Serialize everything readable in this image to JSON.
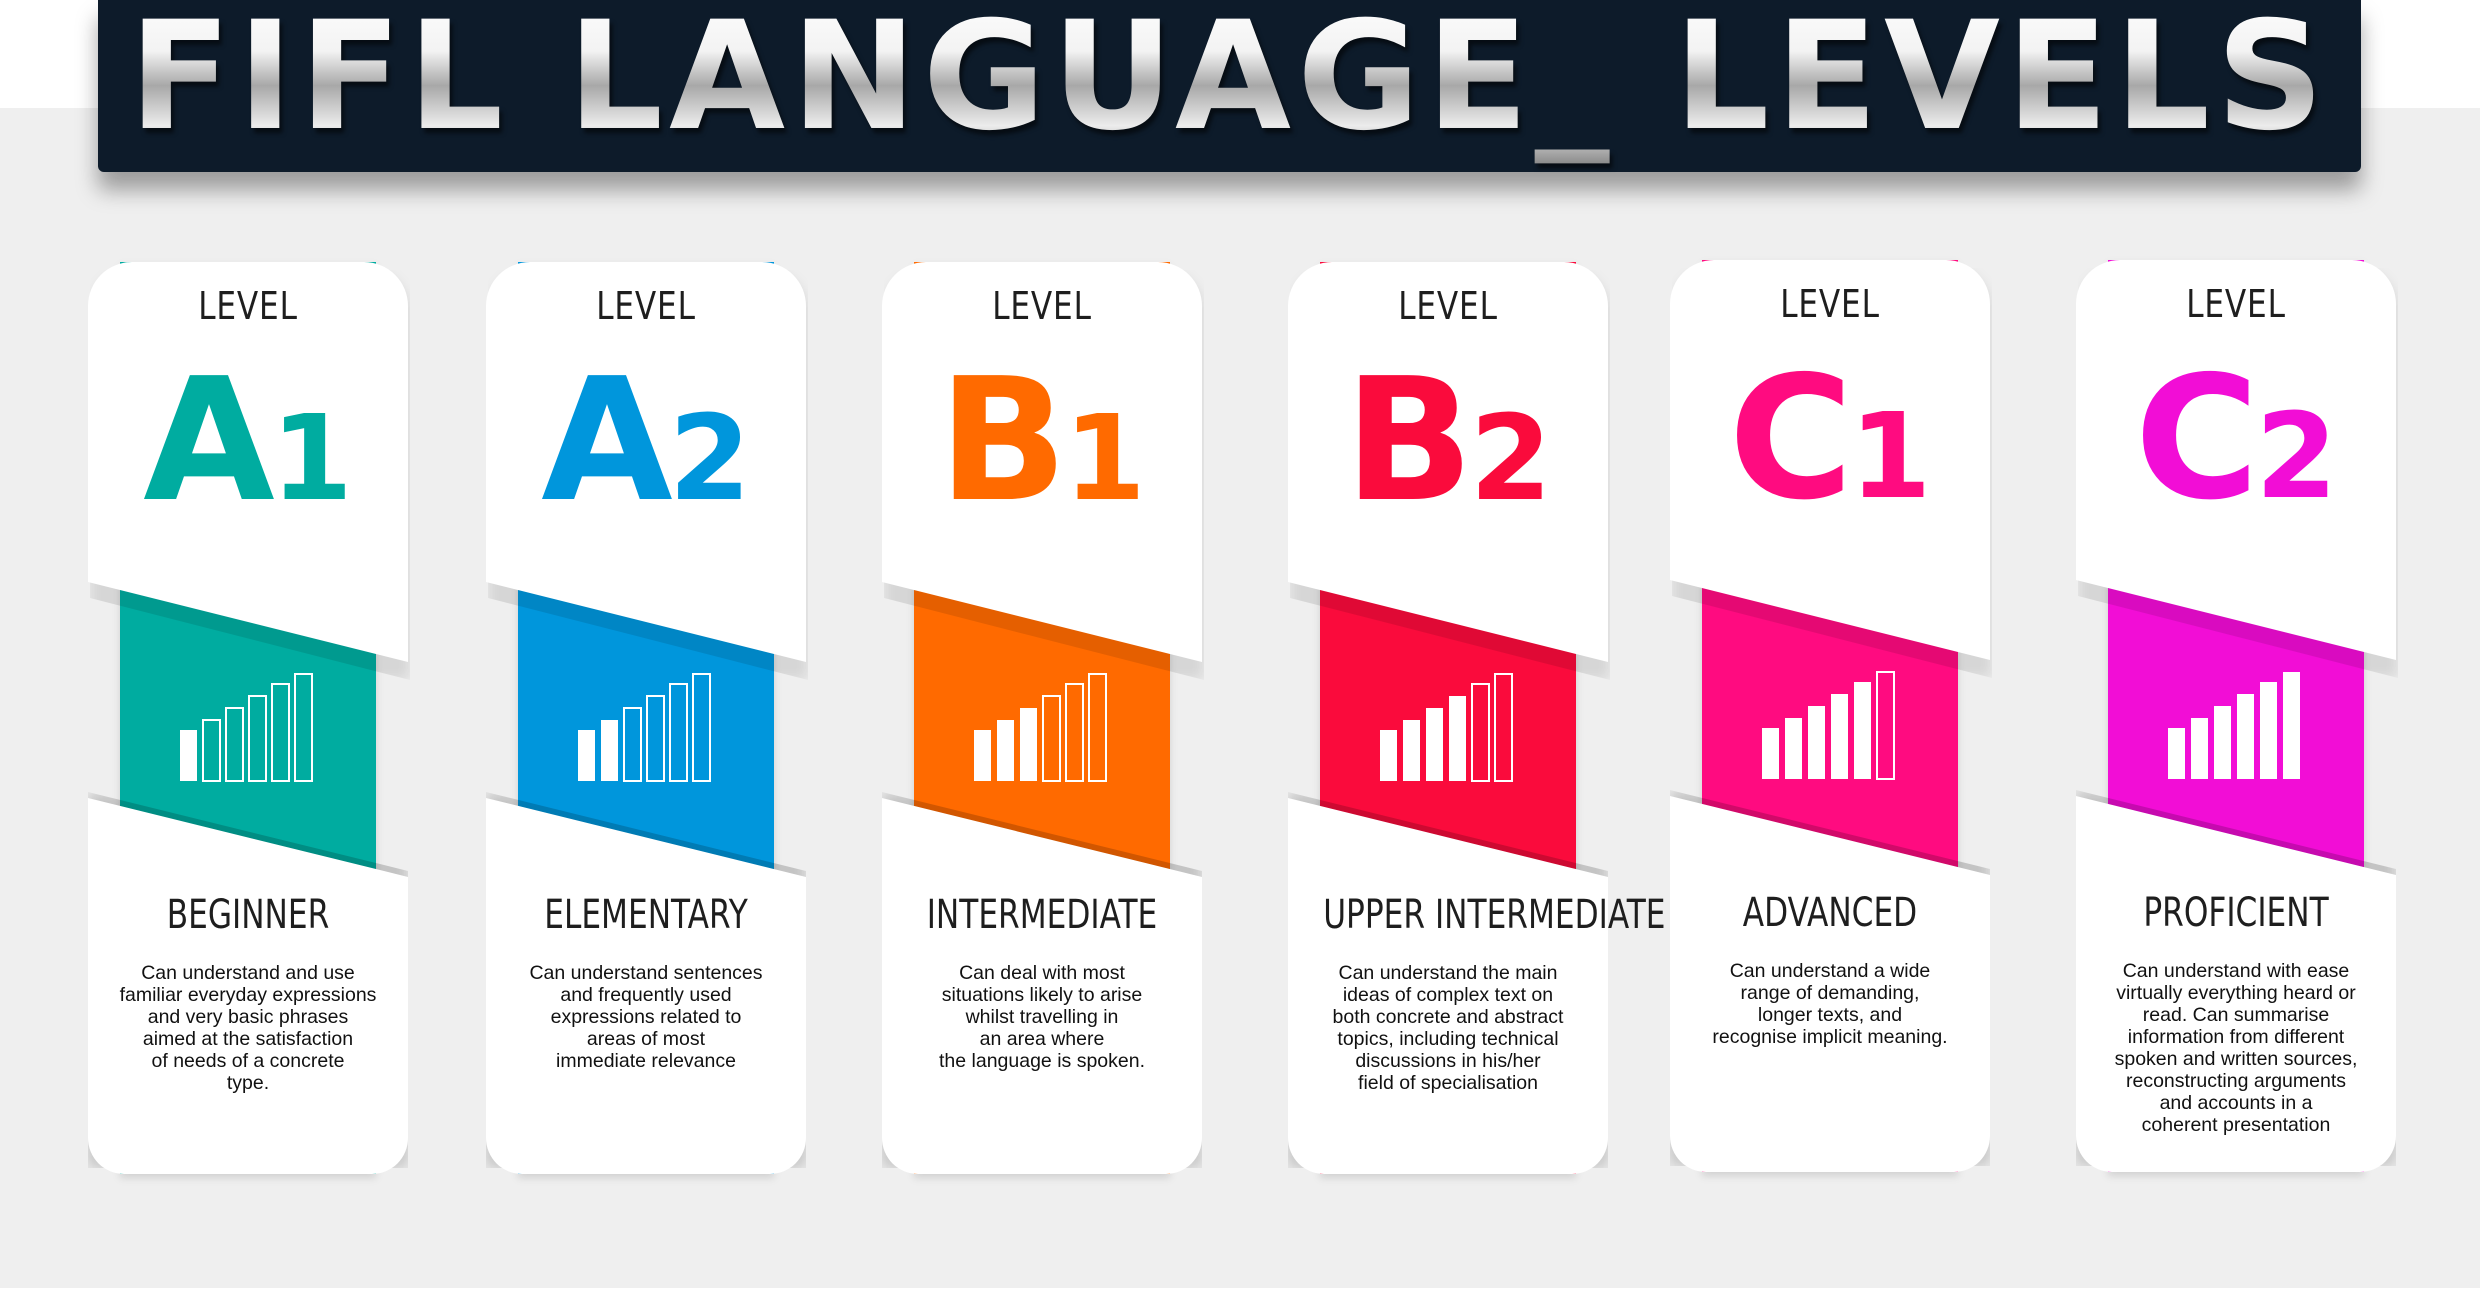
{
  "title": "FIFL LANGUAGE_ LEVELS",
  "levels": [
    {
      "label": "LEVEL",
      "letter": "A",
      "number": "1",
      "color": "#00aca0",
      "name": "BEGINNER",
      "description": "Can understand and use\nfamiliar everyday expressions\nand very basic phrases\naimed at the satisfaction\nof needs of a concrete\ntype.",
      "icon": "bar-chart-icon"
    },
    {
      "label": "LEVEL",
      "letter": "A",
      "number": "2",
      "color": "#0096dc",
      "name": "ELEMENTARY",
      "description": "Can understand sentences\nand frequently used\nexpressions related to\nareas of most\nimmediate relevance",
      "icon": "bar-chart-icon"
    },
    {
      "label": "LEVEL",
      "letter": "B",
      "number": "1",
      "color": "#ff6a00",
      "name": "INTERMEDIATE",
      "description": "Can deal with most\nsituations likely to arise\nwhilst travelling in\nan area where\nthe language is spoken.",
      "icon": "bar-chart-icon"
    },
    {
      "label": "LEVEL",
      "letter": "B",
      "number": "2",
      "color": "#fa0b3c",
      "name": "UPPER INTERMEDIATE",
      "description": "Can understand the main\nideas of complex text on\nboth concrete and abstract\ntopics, including technical\ndiscussions in his/her\nfield of specialisation",
      "icon": "bar-chart-icon"
    },
    {
      "label": "LEVEL",
      "letter": "C",
      "number": "1",
      "color": "#ff0b80",
      "name": "ADVANCED",
      "description": "Can understand a wide\nrange of demanding,\nlonger texts, and\nrecognise implicit meaning.",
      "icon": "bar-chart-icon"
    },
    {
      "label": "LEVEL",
      "letter": "C",
      "number": "2",
      "color": "#f20dd6",
      "name": "PROFICIENT",
      "description": "Can understand with ease\nvirtually everything heard or\nread. Can summarise\ninformation from different\nspoken and written sources,\nreconstructing arguments\nand accounts in a\ncoherent presentation",
      "icon": "bar-chart-icon"
    }
  ]
}
